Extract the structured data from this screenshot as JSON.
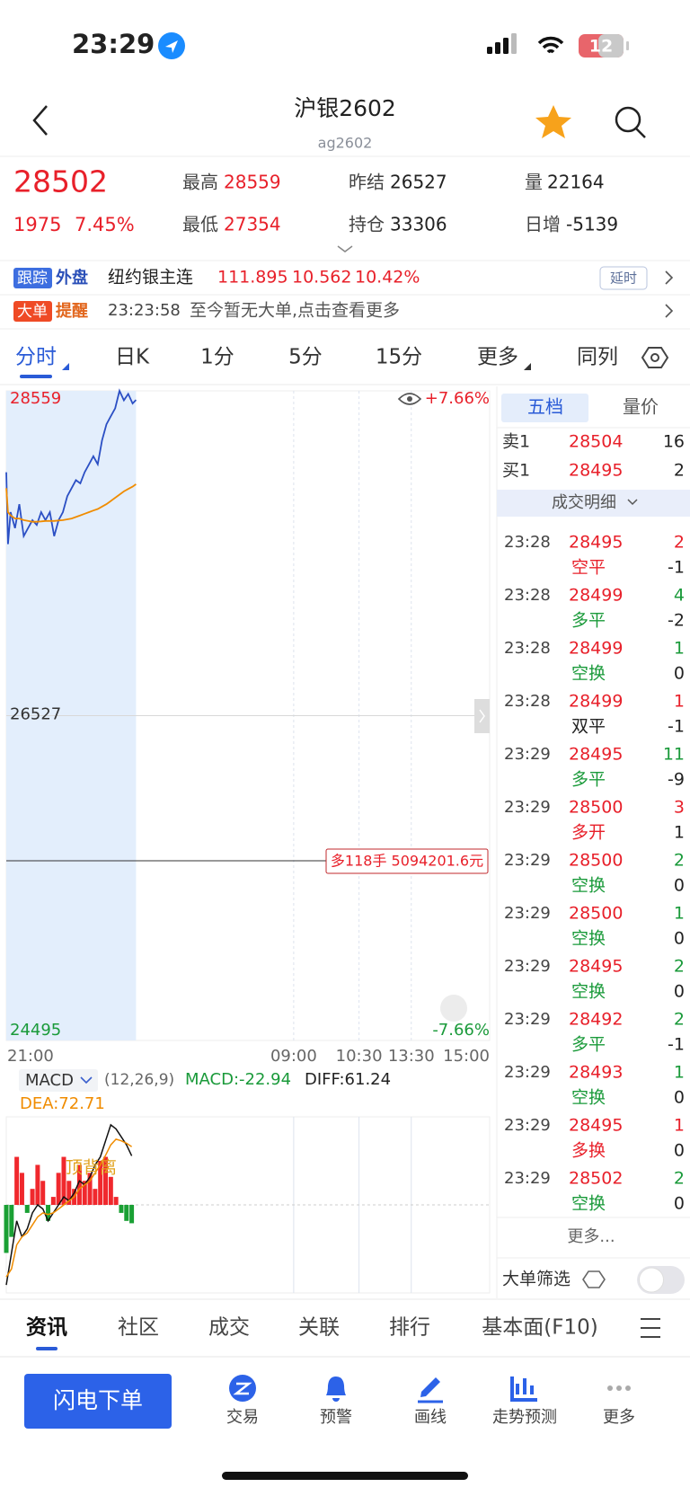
{
  "status_bar": {
    "time": "23:29",
    "battery": "12"
  },
  "header": {
    "title": "沪银2602",
    "code": "ag2602"
  },
  "quote": {
    "price": "28502",
    "change": "1975",
    "change_pct": "7.45%",
    "stats": [
      {
        "label": "最高",
        "value": "28559",
        "color": "#e8202a"
      },
      {
        "label": "昨结",
        "value": "26527",
        "color": "#222222"
      },
      {
        "label": "量",
        "value": "22164",
        "color": "#222222"
      },
      {
        "label": "最低",
        "value": "27354",
        "color": "#e8202a"
      },
      {
        "label": "持仓",
        "value": "33306",
        "color": "#222222"
      },
      {
        "label": "日增",
        "value": "-5139",
        "color": "#222222"
      }
    ]
  },
  "ticker": {
    "tag1": "跟踪",
    "tag2": "外盘",
    "name": "纽约银主连",
    "price": "111.895",
    "change": "10.562",
    "pct": "10.42%",
    "badge": "延时"
  },
  "alert": {
    "tag1": "大单",
    "tag2": "提醒",
    "time": "23:23:58",
    "text": "至今暂无大单,点击查看更多"
  },
  "period_tabs": [
    "分时",
    "日K",
    "1分",
    "5分",
    "15分",
    "更多",
    "同列"
  ],
  "chart_data": [
    {
      "type": "line",
      "x": [
        0,
        2,
        5,
        10,
        15,
        20,
        25,
        30,
        35,
        40,
        45,
        50,
        55,
        60,
        65,
        70,
        75,
        80,
        85,
        90,
        95,
        100,
        105,
        110,
        115,
        120,
        125,
        130,
        135,
        140,
        145,
        149
      ],
      "xlim": [
        0,
        555
      ],
      "xticks": [
        {
          "value": 0,
          "label": "21:00"
        },
        {
          "value": 330,
          "label": "09:00"
        },
        {
          "value": 405,
          "label": "10:30"
        },
        {
          "value": 465,
          "label": "13:30"
        },
        {
          "value": 555,
          "label": "15:00"
        }
      ],
      "ylim": [
        24495,
        28559
      ],
      "yticks": [
        28559,
        26527,
        24495
      ],
      "series": [
        {
          "color": "#2b4fc4",
          "values": [
            28050,
            27600,
            27800,
            27700,
            27850,
            27650,
            27700,
            27750,
            27720,
            27800,
            27750,
            27800,
            27650,
            27750,
            27800,
            27900,
            27950,
            28000,
            27980,
            28050,
            28100,
            28150,
            28100,
            28250,
            28350,
            28400,
            28450,
            28559,
            28500,
            28540,
            28480,
            28502
          ]
        },
        {
          "color": "#f08c00",
          "values": [
            27950,
            27800,
            27780,
            27760,
            27760,
            27750,
            27745,
            27740,
            27740,
            27742,
            27745,
            27745,
            27745,
            27748,
            27750,
            27755,
            27760,
            27770,
            27780,
            27790,
            27800,
            27810,
            27820,
            27835,
            27850,
            27870,
            27890,
            27910,
            27930,
            27945,
            27960,
            27975
          ]
        }
      ],
      "upper_pct": "+7.66%",
      "lower_pct": "-7.66%",
      "annotation": "多118手 5094201.6元"
    },
    {
      "type": "bar",
      "indicator": "MACD",
      "params": "(12,26,9)",
      "macd_label": "MACD:-22.94",
      "diff_label": "DIFF:61.24",
      "dea_label": "DEA:72.71",
      "annotation": "顶背离",
      "x": [
        0,
        6,
        12,
        18,
        24,
        30,
        36,
        42,
        48,
        54,
        60,
        66,
        72,
        78,
        84,
        90,
        96,
        102,
        108,
        114,
        120,
        126,
        132,
        138,
        144
      ],
      "ylim": [
        -110,
        110
      ],
      "values": [
        -60,
        -40,
        60,
        40,
        -10,
        20,
        50,
        30,
        -20,
        10,
        40,
        60,
        30,
        20,
        50,
        30,
        40,
        20,
        55,
        60,
        35,
        10,
        -10,
        -20,
        -22.94
      ],
      "up_color": "#f0282d",
      "down_color": "#1aa034",
      "series": [
        {
          "color": "#111111",
          "values": [
            -100,
            -60,
            -20,
            -40,
            -30,
            -10,
            0,
            -5,
            -20,
            -10,
            0,
            10,
            5,
            15,
            30,
            25,
            35,
            50,
            60,
            80,
            100,
            95,
            85,
            75,
            61.24
          ]
        },
        {
          "color": "#f08c00",
          "values": [
            -90,
            -80,
            -50,
            -40,
            -35,
            -25,
            -15,
            -10,
            -12,
            -10,
            -5,
            0,
            5,
            10,
            20,
            25,
            30,
            40,
            50,
            62,
            75,
            82,
            80,
            77,
            72.71
          ]
        }
      ]
    }
  ],
  "order_book": {
    "tabs": [
      "五档",
      "量价"
    ],
    "levels": [
      {
        "label": "卖1",
        "price": "28504",
        "volume": "16"
      },
      {
        "label": "买1",
        "price": "28495",
        "volume": "2"
      }
    ],
    "detail_title": "成交明细",
    "trades": [
      {
        "time": "23:28",
        "price": "28495",
        "volume": "2",
        "type": "空平",
        "oi": "-1",
        "vol_color": "#e8202a",
        "type_color": "#e8202a"
      },
      {
        "time": "23:28",
        "price": "28499",
        "volume": "4",
        "type": "多平",
        "oi": "-2",
        "vol_color": "#1a9a3a",
        "type_color": "#1a9a3a"
      },
      {
        "time": "23:28",
        "price": "28499",
        "volume": "1",
        "type": "空换",
        "oi": "0",
        "vol_color": "#1a9a3a",
        "type_color": "#1a9a3a"
      },
      {
        "time": "23:28",
        "price": "28499",
        "volume": "1",
        "type": "双平",
        "oi": "-1",
        "vol_color": "#e8202a",
        "type_color": "#222222"
      },
      {
        "time": "23:29",
        "price": "28495",
        "volume": "11",
        "type": "多平",
        "oi": "-9",
        "vol_color": "#1a9a3a",
        "type_color": "#1a9a3a"
      },
      {
        "time": "23:29",
        "price": "28500",
        "volume": "3",
        "type": "多开",
        "oi": "1",
        "vol_color": "#e8202a",
        "type_color": "#e8202a"
      },
      {
        "time": "23:29",
        "price": "28500",
        "volume": "2",
        "type": "空换",
        "oi": "0",
        "vol_color": "#1a9a3a",
        "type_color": "#1a9a3a"
      },
      {
        "time": "23:29",
        "price": "28500",
        "volume": "1",
        "type": "空换",
        "oi": "0",
        "vol_color": "#1a9a3a",
        "type_color": "#1a9a3a"
      },
      {
        "time": "23:29",
        "price": "28495",
        "volume": "2",
        "type": "空换",
        "oi": "0",
        "vol_color": "#1a9a3a",
        "type_color": "#1a9a3a"
      },
      {
        "time": "23:29",
        "price": "28492",
        "volume": "2",
        "type": "多平",
        "oi": "-1",
        "vol_color": "#1a9a3a",
        "type_color": "#1a9a3a"
      },
      {
        "time": "23:29",
        "price": "28493",
        "volume": "1",
        "type": "空换",
        "oi": "0",
        "vol_color": "#1a9a3a",
        "type_color": "#1a9a3a"
      },
      {
        "time": "23:29",
        "price": "28495",
        "volume": "1",
        "type": "多换",
        "oi": "0",
        "vol_color": "#e8202a",
        "type_color": "#e8202a"
      },
      {
        "time": "23:29",
        "price": "28502",
        "volume": "2",
        "type": "空换",
        "oi": "0",
        "vol_color": "#1a9a3a",
        "type_color": "#1a9a3a"
      }
    ],
    "more": "更多...",
    "filter_label": "大单筛选"
  },
  "bottom_tabs": [
    "资讯",
    "社区",
    "成交",
    "关联",
    "排行",
    "基本面(F10)"
  ],
  "toolbar": {
    "primary": "闪电下单",
    "items": [
      "交易",
      "预警",
      "画线",
      "走势预测",
      "更多"
    ]
  }
}
